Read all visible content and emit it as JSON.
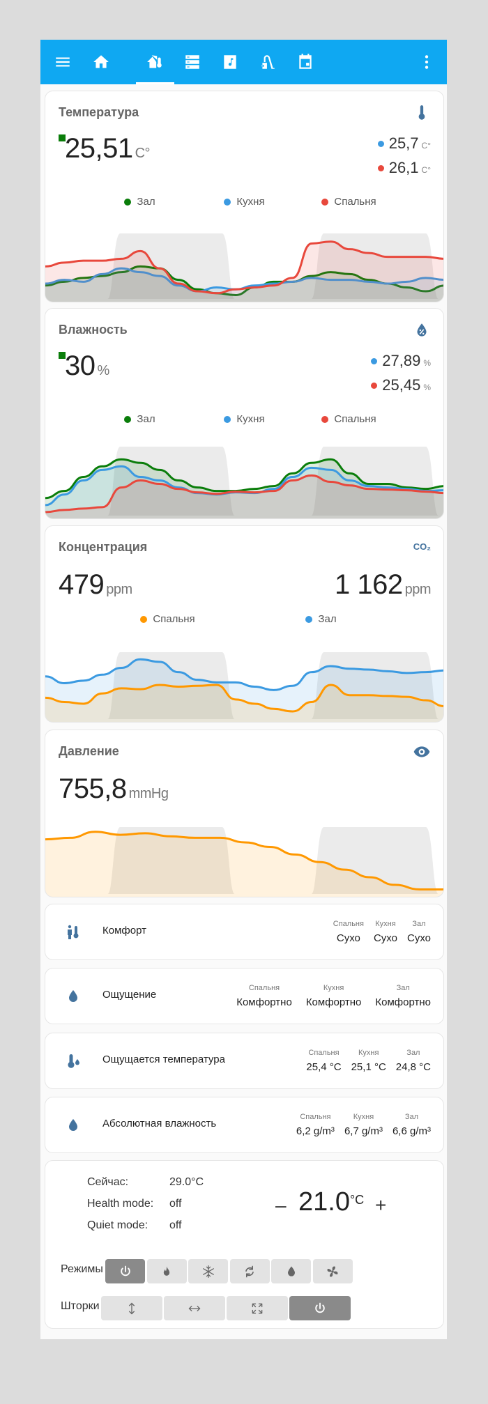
{
  "header": {
    "icons": [
      "menu-icon",
      "home-icon",
      "home-thermometer-icon",
      "server-icon",
      "music-icon",
      "vacuum-icon",
      "calendar-icon",
      "more-vert-icon"
    ],
    "selected": "home-thermometer-icon"
  },
  "colors": {
    "header": "#0fa8f2",
    "icon": "#44739e",
    "zal": "#0a7d0a",
    "kitchen": "#3b9ae1",
    "bedroom": "#e8483c",
    "orange": "#ff9800"
  },
  "temperature": {
    "title": "Температура",
    "main_value": "25,51",
    "main_unit": "C°",
    "secondary": [
      {
        "value": "25,7",
        "unit": "C°"
      },
      {
        "value": "26,1",
        "unit": "C°"
      }
    ],
    "legend": [
      "Зал",
      "Кухня",
      "Спальня"
    ]
  },
  "humidity": {
    "title": "Влажность",
    "main_value": "30",
    "main_unit": "%",
    "secondary": [
      {
        "value": "27,89",
        "unit": "%"
      },
      {
        "value": "25,45",
        "unit": "%"
      }
    ],
    "legend": [
      "Зал",
      "Кухня",
      "Спальня"
    ]
  },
  "co2": {
    "title": "Концентрация",
    "icon_text": "CO₂",
    "left_value": "479",
    "left_unit": "ppm",
    "right_value": "1 162",
    "right_unit": "ppm",
    "legend": [
      "Спальня",
      "Зал"
    ]
  },
  "pressure": {
    "title": "Давление",
    "value": "755,8",
    "unit": "mmHg"
  },
  "rows": [
    {
      "name": "Комфорт",
      "cols": [
        {
          "h": "Спальня",
          "v": "Сухо"
        },
        {
          "h": "Кухня",
          "v": "Сухо"
        },
        {
          "h": "Зал",
          "v": "Сухо"
        }
      ]
    },
    {
      "name": "Ощущение",
      "cols": [
        {
          "h": "Спальня",
          "v": "Комфортно"
        },
        {
          "h": "Кухня",
          "v": "Комфортно"
        },
        {
          "h": "Зал",
          "v": "Комфортно"
        }
      ]
    },
    {
      "name": "Ощущается температура",
      "cols": [
        {
          "h": "Спальня",
          "v": "25,4 °C"
        },
        {
          "h": "Кухня",
          "v": "25,1 °C"
        },
        {
          "h": "Зал",
          "v": "24,8 °C"
        }
      ]
    },
    {
      "name": "Абсолютная влажность",
      "cols": [
        {
          "h": "Спальня",
          "v": "6,2 g/m³"
        },
        {
          "h": "Кухня",
          "v": "6,7 g/m³"
        },
        {
          "h": "Зал",
          "v": "6,6 g/m³"
        }
      ]
    }
  ],
  "climate": {
    "now_label": "Сейчас:",
    "now_value": "29.0°C",
    "health_label": "Health mode:",
    "health_value": "off",
    "quiet_label": "Quiet mode:",
    "quiet_value": "off",
    "target": "21.0",
    "target_unit": "°C",
    "minus": "–",
    "plus": "+",
    "modes_label": "Режимы",
    "modes": [
      "power",
      "heat",
      "cool",
      "auto",
      "dry",
      "fan"
    ],
    "modes_active": "power",
    "blinds_label": "Шторки",
    "blinds": [
      "vertical",
      "horizontal",
      "both",
      "off"
    ],
    "blinds_active": "off"
  },
  "chart_data": [
    {
      "type": "line",
      "title": "Температура",
      "ylim": [
        24.0,
        27.5
      ],
      "series": [
        {
          "name": "Зал",
          "color": "#0a7d0a",
          "values": [
            24.7,
            24.9,
            25.1,
            25.2,
            25.4,
            25.7,
            25.6,
            25.0,
            24.5,
            24.3,
            24.2,
            24.6,
            24.9,
            24.9,
            25.2,
            25.4,
            25.3,
            25.0,
            24.8,
            24.6,
            24.4,
            24.7
          ]
        },
        {
          "name": "Кухня",
          "color": "#3b9ae1",
          "values": [
            24.8,
            25.0,
            24.9,
            25.3,
            25.6,
            25.4,
            25.2,
            24.7,
            24.4,
            24.6,
            24.5,
            24.7,
            24.8,
            24.9,
            25.1,
            25.0,
            25.0,
            24.9,
            24.8,
            24.9,
            25.1,
            25.0
          ]
        },
        {
          "name": "Спальня",
          "color": "#e8483c",
          "values": [
            25.7,
            25.9,
            26.0,
            26.0,
            26.1,
            26.5,
            25.6,
            24.8,
            24.4,
            24.3,
            24.5,
            24.6,
            24.7,
            25.1,
            26.9,
            27.0,
            26.6,
            26.4,
            26.2,
            26.2,
            26.2,
            26.1
          ]
        }
      ]
    },
    {
      "type": "line",
      "title": "Влажность",
      "ylim": [
        24,
        34
      ],
      "series": [
        {
          "name": "Зал",
          "color": "#0a7d0a",
          "values": [
            26.5,
            27.5,
            29.5,
            31,
            32,
            31.5,
            30.5,
            29,
            28,
            27.5,
            27.5,
            27.8,
            28.2,
            30,
            31.5,
            32,
            30,
            28.5,
            28.5,
            28,
            27.8,
            28.2
          ]
        },
        {
          "name": "Кухня",
          "color": "#3b9ae1",
          "values": [
            25.5,
            27,
            29,
            30.5,
            31,
            29.5,
            29,
            28,
            27.2,
            27,
            27.3,
            27.2,
            27.8,
            29.5,
            30.8,
            30.5,
            29,
            28.2,
            28,
            27.8,
            27.5,
            27.6
          ]
        },
        {
          "name": "Спальня",
          "color": "#e8483c",
          "values": [
            24.5,
            24.8,
            25,
            25.2,
            28,
            29,
            28.5,
            27.8,
            27.3,
            27.1,
            27.4,
            27.3,
            27.5,
            29,
            29.7,
            28.8,
            28.3,
            27.8,
            27.7,
            27.6,
            27.4,
            27.2
          ]
        }
      ]
    },
    {
      "type": "line",
      "title": "Концентрация",
      "ylim": [
        500,
        1300
      ],
      "series": [
        {
          "name": "Зал",
          "color": "#3b9ae1",
          "values": [
            1000,
            920,
            950,
            1020,
            1100,
            1200,
            1170,
            1050,
            960,
            930,
            930,
            880,
            840,
            890,
            1050,
            1120,
            1090,
            1080,
            1060,
            1040,
            1050,
            1070
          ]
        },
        {
          "name": "Спальня",
          "color": "#ff9800",
          "values": [
            750,
            700,
            680,
            800,
            860,
            850,
            900,
            880,
            890,
            900,
            730,
            680,
            620,
            590,
            700,
            900,
            780,
            780,
            770,
            760,
            720,
            650
          ]
        }
      ]
    },
    {
      "type": "line",
      "title": "Давление",
      "ylim": [
        755.5,
        760
      ],
      "series": [
        {
          "name": "Давление",
          "color": "#ff9800",
          "values": [
            759.1,
            759.2,
            759.6,
            759.4,
            759.5,
            759.3,
            759.2,
            759.2,
            758.9,
            758.6,
            758.1,
            757.6,
            757.1,
            756.6,
            756.1,
            755.8,
            755.8
          ]
        }
      ]
    }
  ]
}
